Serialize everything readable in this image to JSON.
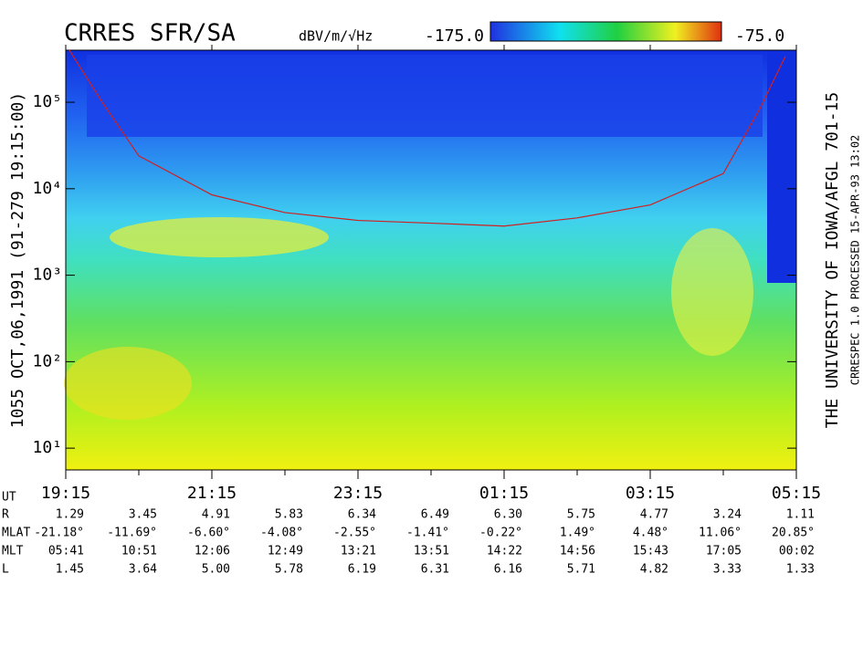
{
  "chart_data": {
    "type": "spectrogram",
    "title": "CRRES SFR/SA",
    "colorbar": {
      "unit": "dBV/m/√Hz",
      "lim": [
        {
          "value": -175,
          "label": "-175.0"
        },
        {
          "value": -75,
          "label": "-75.0"
        }
      ]
    },
    "side_label": "1055   OCT,06,1991   (91-279 19:15:00)",
    "right_label_1": "THE UNIVERSITY OF IOWA/AFGL 701-15",
    "right_label_2": "CRRESPEC 1.0   PROCESSED 15-APR-93  13:02",
    "log_y": true,
    "ylim": [
      5.6,
      400000
    ],
    "yticks": [
      {
        "value": 10,
        "label": "10¹"
      },
      {
        "value": 100,
        "label": "10²"
      },
      {
        "value": 1000,
        "label": "10³"
      },
      {
        "value": 10000,
        "label": "10⁴"
      },
      {
        "value": 100000,
        "label": "10⁵"
      }
    ],
    "xlim": [
      19.25,
      29.25
    ],
    "xticks": [
      {
        "value": 19.25,
        "label": "19:15"
      },
      {
        "value": 21.25,
        "label": "21:15"
      },
      {
        "value": 23.25,
        "label": "23:15"
      },
      {
        "value": 25.25,
        "label": "01:15"
      },
      {
        "value": 27.25,
        "label": "03:15"
      },
      {
        "value": 29.25,
        "label": "05:15"
      }
    ],
    "xminorticks": [
      20.25,
      22.25,
      24.25,
      26.25,
      28.25
    ],
    "series": [
      {
        "color": "#d02020",
        "x": [
          19.3,
          19.75,
          20.25,
          21.25,
          22.25,
          23.25,
          24.25,
          25.25,
          26.25,
          27.25,
          28.25,
          28.75,
          29.1
        ],
        "values": [
          400000,
          100000,
          24000,
          8500,
          5300,
          4300,
          4000,
          3700,
          4600,
          6500,
          15000,
          84000,
          340000
        ]
      }
    ],
    "ephemeris": {
      "axis_label": "UT",
      "rows": [
        {
          "label": "R",
          "values": [
            "1.29",
            "3.45",
            "4.91",
            "5.83",
            "6.34",
            "6.49",
            "6.30",
            "5.75",
            "4.77",
            "3.24",
            "1.11"
          ]
        },
        {
          "label": "MLAT",
          "values": [
            "-21.18°",
            "-11.69°",
            "-6.60°",
            "-4.08°",
            "-2.55°",
            "-1.41°",
            "-0.22°",
            "1.49°",
            "4.48°",
            "11.06°",
            "20.85°"
          ]
        },
        {
          "label": "MLT",
          "values": [
            "05:41",
            "10:51",
            "12:06",
            "12:49",
            "13:21",
            "13:51",
            "14:22",
            "14:56",
            "15:43",
            "17:05",
            "00:02"
          ]
        },
        {
          "label": "L",
          "values": [
            "1.45",
            "3.64",
            "5.00",
            "5.78",
            "6.19",
            "6.31",
            "6.16",
            "5.71",
            "4.82",
            "3.33",
            "1.33"
          ]
        }
      ]
    }
  }
}
